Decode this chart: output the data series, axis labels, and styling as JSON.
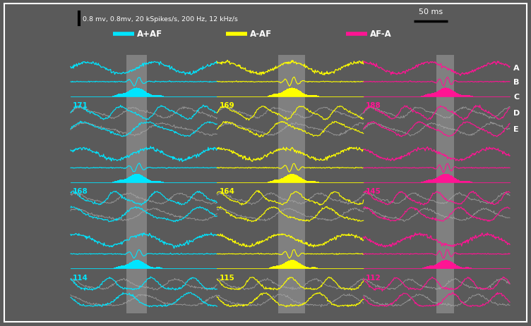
{
  "bg_color": "#5A5A5A",
  "cyan": "#00E5FF",
  "yellow": "#FFFF00",
  "magenta": "#FF1493",
  "gray_trace": "#AAAAAA",
  "highlight_color": "#BBBBBB",
  "highlight_alpha": 0.4,
  "col3_label": "188",
  "row_labels": [
    [
      "171",
      "168",
      "114"
    ],
    [
      "169",
      "164",
      "115"
    ],
    [
      "188",
      "145",
      "112"
    ]
  ],
  "abcde_labels": [
    "A",
    "B",
    "C",
    "D",
    "E"
  ],
  "legend_items": [
    [
      "A+AF",
      "#00E5FF"
    ],
    [
      "A-AF",
      "#FFFF00"
    ],
    [
      "AF-A",
      "#FF1493"
    ]
  ],
  "scale_text": "0.8 mv, 0.8mv, 20 kSpikes/s, 200 Hz, 12 kHz/s",
  "scale_ms": "50 ms"
}
